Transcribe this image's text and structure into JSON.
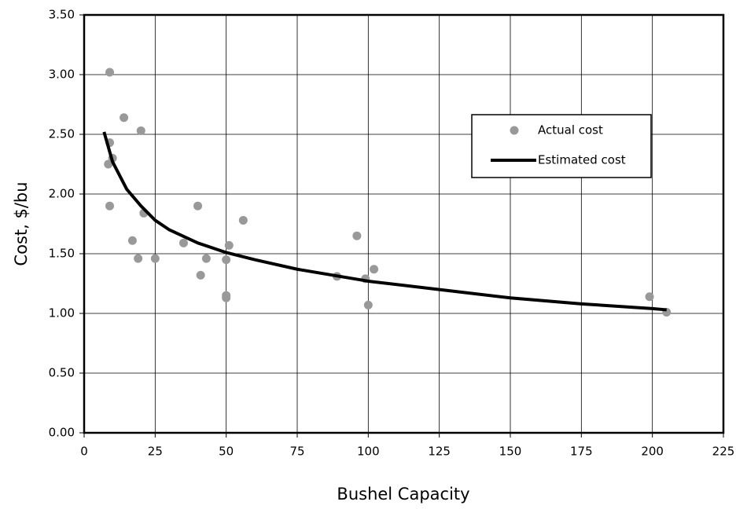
{
  "chart_data": {
    "type": "scatter",
    "xlabel": "Bushel Capacity",
    "ylabel": "Cost, $/bu",
    "xlim": [
      0,
      225
    ],
    "xticks": [
      0,
      25,
      50,
      75,
      100,
      125,
      150,
      175,
      200,
      225
    ],
    "ylim": [
      0,
      3.5
    ],
    "yticks": [
      {
        "value": 0,
        "label": "0.00"
      },
      {
        "value": 0.5,
        "label": "0.50"
      },
      {
        "value": 1,
        "label": "1.00"
      },
      {
        "value": 1.5,
        "label": "1.50"
      },
      {
        "value": 2,
        "label": "2.00"
      },
      {
        "value": 2.5,
        "label": "2.50"
      },
      {
        "value": 3,
        "label": "3.00"
      },
      {
        "value": 3.5,
        "label": "3.50"
      }
    ],
    "grid": true,
    "legend": "center-right",
    "series": [
      {
        "name": "Actual cost",
        "type": "scatter",
        "color": "#999999",
        "x": [
          9,
          9,
          8.5,
          10,
          9,
          14,
          20,
          21,
          17,
          19,
          25,
          35,
          40,
          41,
          43,
          50,
          50,
          50,
          51,
          56,
          89,
          96,
          99,
          100,
          102,
          199,
          205
        ],
        "values": [
          3.02,
          2.43,
          2.25,
          2.3,
          1.9,
          2.64,
          2.53,
          1.84,
          1.61,
          1.46,
          1.46,
          1.59,
          1.9,
          1.32,
          1.46,
          1.45,
          1.13,
          1.15,
          1.57,
          1.78,
          1.31,
          1.65,
          1.29,
          1.07,
          1.37,
          1.14,
          1.01
        ]
      },
      {
        "name": "Estimated cost",
        "type": "line",
        "color": "#000000",
        "x": [
          7,
          10,
          15,
          20,
          25,
          30,
          40,
          50,
          60,
          75,
          100,
          125,
          150,
          175,
          200,
          205
        ],
        "values": [
          2.52,
          2.27,
          2.04,
          1.9,
          1.78,
          1.7,
          1.59,
          1.51,
          1.45,
          1.37,
          1.27,
          1.2,
          1.13,
          1.08,
          1.04,
          1.03
        ]
      }
    ]
  }
}
